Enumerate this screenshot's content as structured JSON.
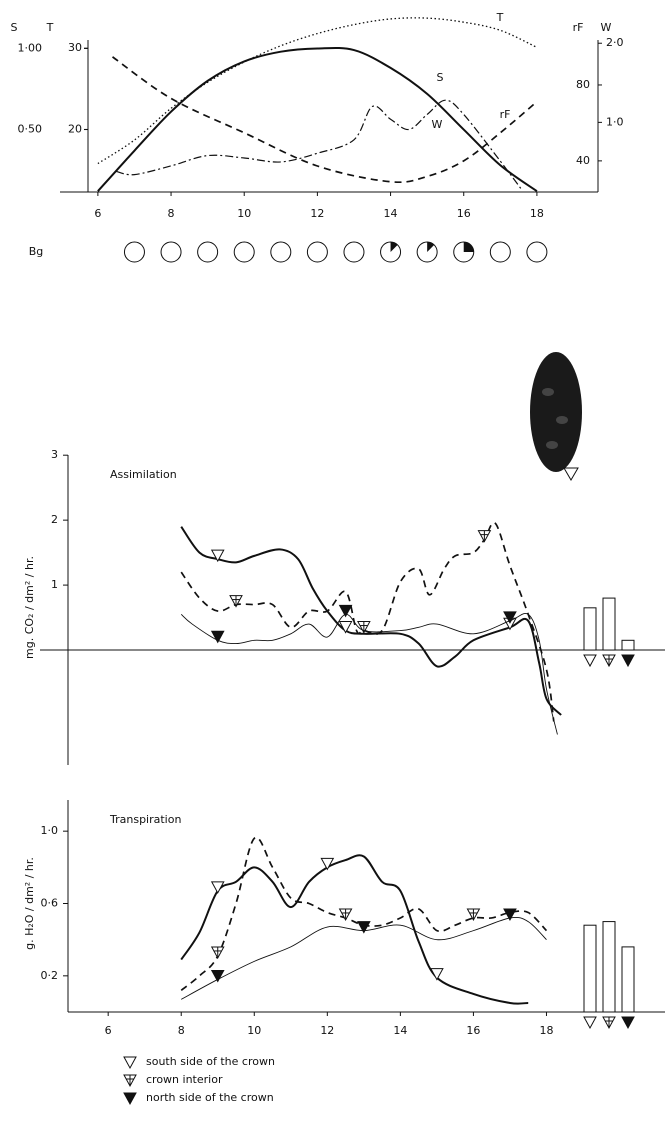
{
  "chart_data": [
    {
      "type": "line",
      "xlim": [
        5.73,
        19.67
      ],
      "xticks": [
        6,
        8,
        10,
        12,
        14,
        16,
        18
      ],
      "axes": [
        {
          "label": "S",
          "ylim": [
            0.115,
            1.237
          ],
          "yticks": [
            {
              "value": 0.5,
              "label": "0·50"
            },
            {
              "value": 1.0,
              "label": "1·00"
            }
          ]
        },
        {
          "label": "T",
          "ylim": [
            12.3,
            34.7
          ],
          "yticks": [
            20,
            30
          ]
        },
        {
          "label": "rF",
          "ylim": [
            23.6,
            119.5
          ],
          "yticks": [
            40,
            80
          ]
        },
        {
          "label": "W",
          "ylim": [
            0.12,
            2.42
          ],
          "yticks": [
            {
              "value": 1.0,
              "label": "1·0"
            },
            {
              "value": 2.0,
              "label": "2·0"
            }
          ]
        }
      ],
      "series": [
        {
          "name": "S",
          "axis": 0,
          "style": "solid",
          "color": "#111111",
          "x": [
            6,
            7,
            8,
            9,
            10,
            11,
            12,
            13,
            14,
            15,
            16,
            17,
            18
          ],
          "values": [
            0.12,
            0.37,
            0.61,
            0.8,
            0.92,
            0.98,
            1.0,
            0.99,
            0.88,
            0.72,
            0.5,
            0.28,
            0.12
          ]
        },
        {
          "name": "T",
          "axis": 1,
          "style": "dotted",
          "color": "#111111",
          "x": [
            6,
            7,
            8,
            9,
            10,
            11,
            12,
            13,
            14,
            15,
            16,
            17,
            18
          ],
          "values": [
            15.8,
            18.7,
            22.6,
            25.8,
            28.3,
            30.3,
            31.8,
            32.9,
            33.6,
            33.7,
            33.2,
            32.2,
            30.1
          ]
        },
        {
          "name": "W",
          "axis": 3,
          "style": "dashdot",
          "color": "#111111",
          "x": [
            6.5,
            7,
            8,
            9,
            10,
            11,
            12,
            13,
            13.5,
            14,
            14.5,
            15,
            15.5,
            16,
            17,
            17.6
          ],
          "values": [
            0.38,
            0.34,
            0.45,
            0.58,
            0.55,
            0.5,
            0.61,
            0.78,
            1.2,
            1.04,
            0.91,
            1.1,
            1.28,
            1.1,
            0.51,
            0.14
          ]
        },
        {
          "name": "rF",
          "axis": 2,
          "style": "dashed",
          "color": "#111111",
          "x": [
            6.4,
            8,
            10,
            12,
            14,
            15,
            16,
            17,
            18
          ],
          "values": [
            94.8,
            72.9,
            54.8,
            37.3,
            29,
            31.8,
            40,
            54.8,
            71.2
          ]
        }
      ],
      "cloud_cover": {
        "label": "Bg",
        "x": [
          7,
          8,
          9,
          10,
          11,
          12,
          13,
          14,
          15,
          16,
          17,
          18
        ],
        "values": [
          0,
          0,
          0,
          0,
          0,
          0,
          0,
          0.125,
          0.125,
          0.25,
          0,
          0
        ]
      }
    },
    {
      "type": "line",
      "title": "Assimilation",
      "ylabel": "mg. CO₂ / dm² / hr.",
      "xlim": [
        4.9,
        21.3
      ],
      "ylim": [
        -1.77,
        3.08
      ],
      "yticks": [
        1,
        2,
        3
      ],
      "series": [
        {
          "name": "south side of the crown",
          "marker": "open",
          "style": "solid",
          "x": [
            8,
            8.5,
            9,
            9.5,
            10,
            10.7,
            11.2,
            11.6,
            12,
            12.5,
            13,
            14,
            14.5,
            15,
            15.5,
            16,
            17,
            17.5,
            17.8,
            18,
            18.4
          ],
          "values": [
            1.9,
            1.5,
            1.4,
            1.35,
            1.45,
            1.55,
            1.4,
            0.95,
            0.6,
            0.3,
            0.25,
            0.25,
            0.1,
            -0.25,
            -0.1,
            0.15,
            0.35,
            0.45,
            -0.2,
            -0.75,
            -1.0
          ]
        },
        {
          "name": "crown interior",
          "marker": "cross",
          "style": "dashed",
          "x": [
            8,
            8.5,
            9,
            9.5,
            10,
            10.5,
            11,
            11.5,
            12,
            12.5,
            12.8,
            13,
            13.5,
            14,
            14.5,
            14.8,
            15.2,
            15.5,
            16,
            16.3,
            16.6,
            17,
            17.5,
            18,
            18.2
          ],
          "values": [
            1.2,
            0.8,
            0.6,
            0.7,
            0.7,
            0.7,
            0.35,
            0.6,
            0.6,
            0.9,
            0.3,
            0.3,
            0.3,
            1.05,
            1.25,
            0.85,
            1.25,
            1.45,
            1.5,
            1.7,
            1.95,
            1.3,
            0.55,
            -0.3,
            -1.1
          ]
        },
        {
          "name": "north side of the crown",
          "marker": "filled",
          "style": "thin",
          "x": [
            8,
            8.3,
            9,
            9.5,
            10,
            10.5,
            11,
            11.5,
            12,
            12.5,
            13,
            14,
            14.5,
            15,
            16,
            17,
            17.5,
            17.8,
            18,
            18.3
          ],
          "values": [
            0.55,
            0.4,
            0.15,
            0.1,
            0.15,
            0.15,
            0.25,
            0.4,
            0.2,
            0.55,
            0.3,
            0.3,
            0.35,
            0.4,
            0.25,
            0.45,
            0.55,
            0.15,
            -0.6,
            -1.3
          ]
        }
      ],
      "bars": [
        0.65,
        0.8,
        0.15
      ]
    },
    {
      "type": "line",
      "title": "Transpiration",
      "ylabel": "g. H₂O / dm² / hr.",
      "xlim": [
        4.9,
        21.3
      ],
      "ylim": [
        0,
        1.2
      ],
      "yticks": [
        {
          "value": 0.2,
          "label": "0·2"
        },
        {
          "value": 0.6,
          "label": "0·6"
        },
        {
          "value": 1.0,
          "label": "1·0"
        }
      ],
      "xticks": [
        6,
        8,
        10,
        12,
        14,
        16,
        18
      ],
      "series": [
        {
          "marker": "open",
          "style": "solid",
          "x": [
            8,
            8.5,
            9,
            9.5,
            10,
            10.5,
            11,
            11.5,
            12,
            12.5,
            13,
            13.5,
            14,
            14.5,
            15,
            16,
            17,
            17.5
          ],
          "values": [
            0.29,
            0.44,
            0.67,
            0.72,
            0.8,
            0.72,
            0.58,
            0.72,
            0.8,
            0.84,
            0.86,
            0.72,
            0.67,
            0.39,
            0.19,
            0.1,
            0.05,
            0.05
          ]
        },
        {
          "marker": "cross",
          "style": "dashed",
          "x": [
            8,
            8.5,
            9,
            9.5,
            10,
            10.5,
            11,
            11.5,
            12,
            12.5,
            13,
            13.5,
            14,
            14.5,
            15,
            15.5,
            16,
            16.5,
            17,
            17.5,
            18
          ],
          "values": [
            0.12,
            0.2,
            0.31,
            0.6,
            0.96,
            0.8,
            0.63,
            0.6,
            0.55,
            0.52,
            0.48,
            0.48,
            0.52,
            0.57,
            0.45,
            0.48,
            0.52,
            0.52,
            0.55,
            0.55,
            0.45
          ]
        },
        {
          "marker": "filled",
          "style": "thin",
          "x": [
            8,
            9,
            10,
            11,
            12,
            13,
            14,
            15,
            16,
            17,
            17.5,
            18
          ],
          "values": [
            0.07,
            0.18,
            0.28,
            0.36,
            0.47,
            0.45,
            0.48,
            0.4,
            0.45,
            0.52,
            0.5,
            0.4
          ]
        }
      ],
      "bars": [
        0.48,
        0.5,
        0.36
      ]
    }
  ]
}
